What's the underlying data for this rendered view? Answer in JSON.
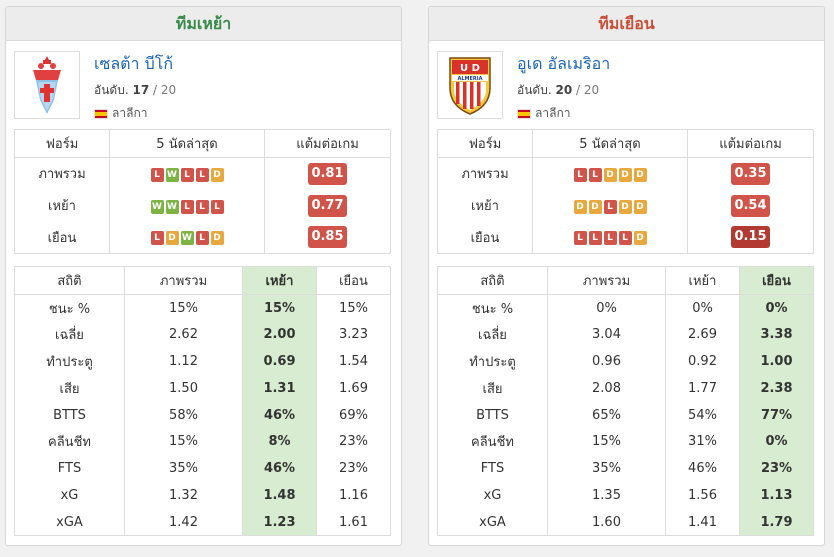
{
  "home": {
    "header": "ทีมเหย้า",
    "team_name": "เซลต้า บีโก้",
    "rank_label": "อันดับ.",
    "rank": "17",
    "rank_total": "/ 20",
    "league": "ลาลีกา",
    "logo_icon": "celta-vigo-crest-icon",
    "form_headers": [
      "ฟอร์ม",
      "5 นัดล่าสุด",
      "แต้มต่อเกม"
    ],
    "form_rows": [
      {
        "label": "ภาพรวม",
        "results": [
          "L",
          "W",
          "L",
          "L",
          "D"
        ],
        "ppg": "0.81",
        "ppg_color": "#d0544a"
      },
      {
        "label": "เหย้า",
        "results": [
          "W",
          "W",
          "L",
          "L",
          "L"
        ],
        "ppg": "0.77",
        "ppg_color": "#d0544a"
      },
      {
        "label": "เยือน",
        "results": [
          "L",
          "D",
          "W",
          "L",
          "D"
        ],
        "ppg": "0.85",
        "ppg_color": "#d0544a"
      }
    ],
    "highlight_col": 2,
    "stats_headers": [
      "สถิติ",
      "ภาพรวม",
      "เหย้า",
      "เยือน"
    ],
    "stats_rows": [
      {
        "label": "ชนะ %",
        "v": [
          "15%",
          "15%",
          "15%"
        ]
      },
      {
        "label": "เฉลี่ย",
        "v": [
          "2.62",
          "2.00",
          "3.23"
        ]
      },
      {
        "label": "ทำประตู",
        "v": [
          "1.12",
          "0.69",
          "1.54"
        ]
      },
      {
        "label": "เสีย",
        "v": [
          "1.50",
          "1.31",
          "1.69"
        ]
      },
      {
        "label": "BTTS",
        "v": [
          "58%",
          "46%",
          "69%"
        ]
      },
      {
        "label": "คลีนชีท",
        "v": [
          "15%",
          "8%",
          "23%"
        ]
      },
      {
        "label": "FTS",
        "v": [
          "35%",
          "46%",
          "23%"
        ]
      },
      {
        "label": "xG",
        "v": [
          "1.32",
          "1.48",
          "1.16"
        ]
      },
      {
        "label": "xGA",
        "v": [
          "1.42",
          "1.23",
          "1.61"
        ]
      }
    ]
  },
  "away": {
    "header": "ทีมเยือน",
    "team_name": "อูเด อัลเมริอา",
    "rank_label": "อันดับ.",
    "rank": "20",
    "rank_total": "/ 20",
    "league": "ลาลีกา",
    "logo_icon": "ud-almeria-crest-icon",
    "logo_text_top": "U D",
    "logo_text_band": "ALMERIA",
    "form_headers": [
      "ฟอร์ม",
      "5 นัดล่าสุด",
      "แต้มต่อเกม"
    ],
    "form_rows": [
      {
        "label": "ภาพรวม",
        "results": [
          "L",
          "L",
          "D",
          "D",
          "D"
        ],
        "ppg": "0.35",
        "ppg_color": "#d0544a"
      },
      {
        "label": "เหย้า",
        "results": [
          "D",
          "D",
          "L",
          "D",
          "D"
        ],
        "ppg": "0.54",
        "ppg_color": "#d0544a"
      },
      {
        "label": "เยือน",
        "results": [
          "L",
          "L",
          "L",
          "L",
          "D"
        ],
        "ppg": "0.15",
        "ppg_color": "#b23a32"
      }
    ],
    "highlight_col": 3,
    "stats_headers": [
      "สถิติ",
      "ภาพรวม",
      "เหย้า",
      "เยือน"
    ],
    "stats_rows": [
      {
        "label": "ชนะ %",
        "v": [
          "0%",
          "0%",
          "0%"
        ]
      },
      {
        "label": "เฉลี่ย",
        "v": [
          "3.04",
          "2.69",
          "3.38"
        ]
      },
      {
        "label": "ทำประตู",
        "v": [
          "0.96",
          "0.92",
          "1.00"
        ]
      },
      {
        "label": "เสีย",
        "v": [
          "2.08",
          "1.77",
          "2.38"
        ]
      },
      {
        "label": "BTTS",
        "v": [
          "65%",
          "54%",
          "77%"
        ]
      },
      {
        "label": "คลีนชีท",
        "v": [
          "15%",
          "31%",
          "0%"
        ]
      },
      {
        "label": "FTS",
        "v": [
          "35%",
          "46%",
          "23%"
        ]
      },
      {
        "label": "xG",
        "v": [
          "1.35",
          "1.56",
          "1.13"
        ]
      },
      {
        "label": "xGA",
        "v": [
          "1.60",
          "1.41",
          "1.79"
        ]
      }
    ]
  }
}
